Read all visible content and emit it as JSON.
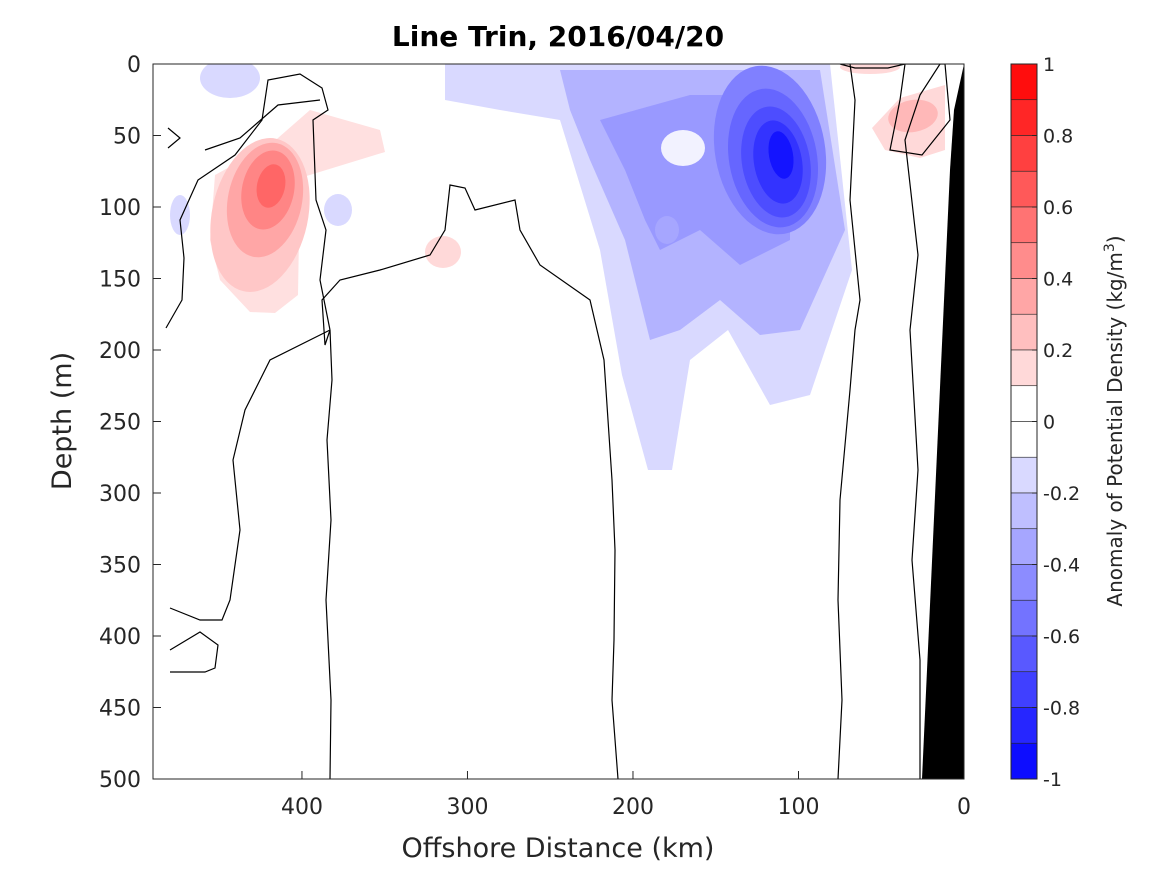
{
  "chart_data": {
    "type": "heatmap",
    "title": "Line Trin, 2016/04/20",
    "xlabel": "Offshore Distance (km)",
    "ylabel": "Depth (m)",
    "xlim": [
      490,
      0
    ],
    "ylim": [
      0,
      500
    ],
    "x_reversed": true,
    "y_reversed": true,
    "x_ticks": [
      400,
      300,
      200,
      100,
      0
    ],
    "y_ticks": [
      0,
      50,
      100,
      150,
      200,
      250,
      300,
      350,
      400,
      450,
      500
    ],
    "colorbar": {
      "label_main": "Anomaly of Potential Density (kg/m",
      "label_sup": "3",
      "label_end": ")",
      "range": [
        -1,
        1
      ],
      "ticks": [
        1,
        0.8,
        0.6,
        0.4,
        0.2,
        0,
        -0.2,
        -0.4,
        -0.6,
        -0.8,
        -1
      ],
      "tick_labels": [
        "1",
        "0.8",
        "0.6",
        "0.4",
        "0.2",
        "0",
        "-0.2",
        "-0.4",
        "-0.6",
        "-0.8",
        "-1"
      ],
      "levels": 20,
      "colormap": "blue-white-red"
    },
    "features": [
      {
        "kind": "positive-anomaly",
        "center_km": 420,
        "center_depth_m": 90,
        "peak": 0.6
      },
      {
        "kind": "positive-anomaly",
        "center_km": 40,
        "center_depth_m": 40,
        "peak": 0.25
      },
      {
        "kind": "negative-anomaly",
        "center_km": 110,
        "center_depth_m": 65,
        "peak": -0.8
      },
      {
        "kind": "negative-anomaly",
        "center_km": 190,
        "center_depth_m": 110,
        "peak": -0.3
      },
      {
        "kind": "bathymetry",
        "color": "#000000"
      }
    ],
    "grid": false
  }
}
